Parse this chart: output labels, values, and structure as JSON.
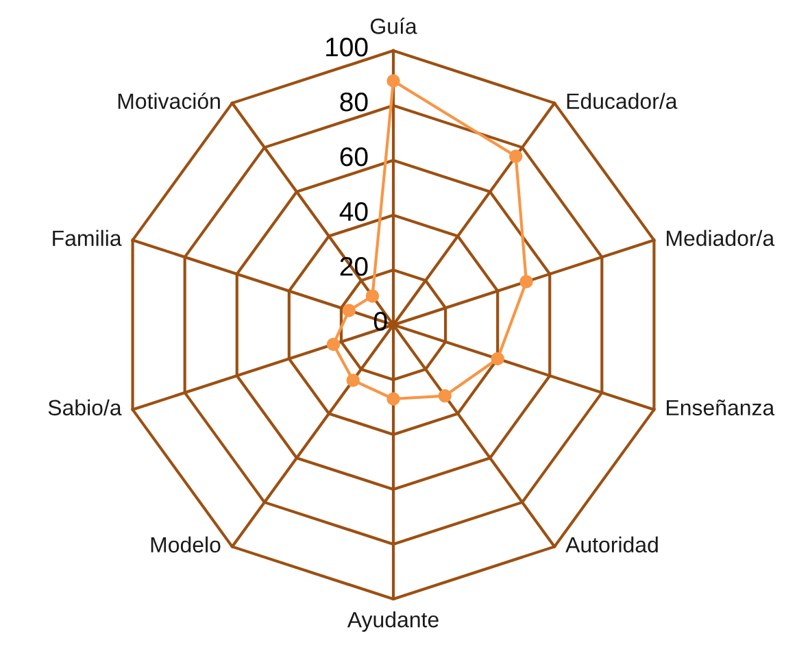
{
  "chart_data": {
    "type": "radar",
    "categories": [
      "Guía",
      "Educador/a",
      "Mediador/a",
      "Enseñanza",
      "Autoridad",
      "Ayudante",
      "Modelo",
      "Sabio/a",
      "Familia",
      "Motivación"
    ],
    "series": [
      {
        "color": "#f79646",
        "values": [
          89,
          76,
          51,
          40,
          32,
          27,
          25,
          23,
          17,
          13
        ]
      }
    ],
    "ylim": [
      0,
      100
    ],
    "yticks": [
      0,
      20,
      40,
      60,
      80,
      100
    ],
    "grid": true,
    "marker": "circle",
    "line_style": "solid"
  }
}
